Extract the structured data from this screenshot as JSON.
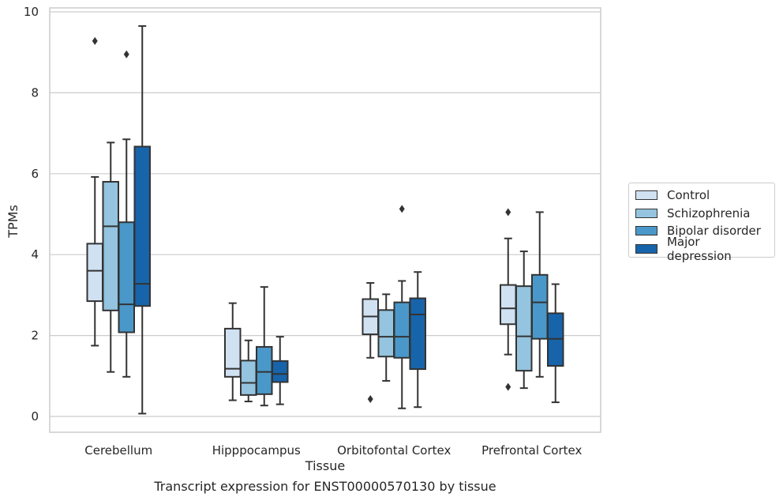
{
  "chart_data": {
    "type": "box",
    "title": "",
    "caption": "Transcript expression for ENST00000570130 by tissue",
    "xlabel": "Tissue",
    "ylabel": "TPMs",
    "ylim": [
      -0.4,
      10.1
    ],
    "yticks": [
      0,
      2,
      4,
      6,
      8,
      10
    ],
    "grid": "horizontal",
    "legend_position": "right",
    "categories": [
      "Cerebellum",
      "Hipppocampus",
      "Orbitofontal Cortex",
      "Prefrontal Cortex"
    ],
    "series": [
      {
        "name": "Control",
        "color": "#d0e1f2",
        "boxes": [
          {
            "whisker_low": 1.75,
            "q1": 2.85,
            "median": 3.6,
            "q3": 4.27,
            "whisker_high": 5.92,
            "outliers": []
          },
          {
            "whisker_low": 0.4,
            "q1": 0.98,
            "median": 1.18,
            "q3": 2.17,
            "whisker_high": 2.8,
            "outliers": []
          },
          {
            "whisker_low": 1.45,
            "q1": 2.03,
            "median": 2.47,
            "q3": 2.9,
            "whisker_high": 3.3,
            "outliers": [
              0.43
            ]
          },
          {
            "whisker_low": 1.53,
            "q1": 2.28,
            "median": 2.67,
            "q3": 3.25,
            "whisker_high": 4.4,
            "outliers": [
              5.05,
              0.73
            ]
          }
        ]
      },
      {
        "name": "Schizophrenia",
        "color": "#94c4df",
        "boxes": [
          {
            "whisker_low": 1.1,
            "q1": 2.62,
            "median": 4.7,
            "q3": 5.8,
            "whisker_high": 6.77,
            "outliers": []
          },
          {
            "whisker_low": 0.37,
            "q1": 0.53,
            "median": 0.83,
            "q3": 1.38,
            "whisker_high": 1.88,
            "outliers": []
          },
          {
            "whisker_low": 0.88,
            "q1": 1.48,
            "median": 1.97,
            "q3": 2.63,
            "whisker_high": 3.02,
            "outliers": []
          },
          {
            "whisker_low": 0.7,
            "q1": 1.13,
            "median": 1.98,
            "q3": 3.22,
            "whisker_high": 4.08,
            "outliers": []
          }
        ]
      },
      {
        "name": "Bipolar disorder",
        "color": "#4a98c9",
        "boxes": [
          {
            "whisker_low": 0.98,
            "q1": 2.08,
            "median": 2.77,
            "q3": 4.8,
            "whisker_high": 6.85,
            "outliers": [
              8.95
            ]
          },
          {
            "whisker_low": 0.27,
            "q1": 0.55,
            "median": 1.1,
            "q3": 1.72,
            "whisker_high": 3.2,
            "outliers": []
          },
          {
            "whisker_low": 0.2,
            "q1": 1.45,
            "median": 1.97,
            "q3": 2.82,
            "whisker_high": 3.35,
            "outliers": [
              5.13
            ]
          },
          {
            "whisker_low": 0.98,
            "q1": 1.92,
            "median": 2.82,
            "q3": 3.5,
            "whisker_high": 5.05,
            "outliers": []
          }
        ]
      },
      {
        "name": "Major depression",
        "color": "#1764ab",
        "boxes": [
          {
            "whisker_low": 0.07,
            "q1": 2.73,
            "median": 3.28,
            "q3": 6.67,
            "whisker_high": 9.65,
            "outliers": []
          },
          {
            "whisker_low": 0.3,
            "q1": 0.85,
            "median": 1.05,
            "q3": 1.37,
            "whisker_high": 1.97,
            "outliers": []
          },
          {
            "whisker_low": 0.23,
            "q1": 1.17,
            "median": 2.52,
            "q3": 2.92,
            "whisker_high": 3.57,
            "outliers": []
          },
          {
            "whisker_low": 0.35,
            "q1": 1.25,
            "median": 1.92,
            "q3": 2.55,
            "whisker_high": 3.27,
            "outliers": []
          }
        ]
      }
    ],
    "extra_outliers": [
      {
        "category": "Cerebellum",
        "series": "Control",
        "value": 9.28
      }
    ]
  }
}
